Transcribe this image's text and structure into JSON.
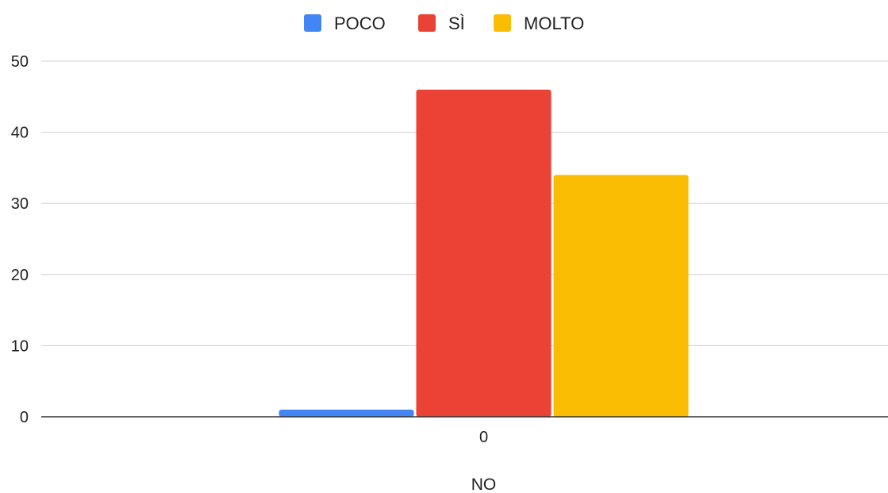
{
  "chart_data": {
    "type": "bar",
    "categories": [
      "0"
    ],
    "series": [
      {
        "name": "POCO",
        "values": [
          1
        ],
        "color": "#4285F4"
      },
      {
        "name": "SÌ",
        "values": [
          46
        ],
        "color": "#EA4335"
      },
      {
        "name": "MOLTO",
        "values": [
          34
        ],
        "color": "#FBBC04"
      }
    ],
    "xlabel": "NO",
    "ylabel": "",
    "ylim": [
      0,
      50
    ],
    "yticks": [
      "0",
      "10",
      "20",
      "30",
      "40",
      "50"
    ],
    "grid": true,
    "legend_position": "top"
  },
  "colors": {
    "grid": "#d0d0d0",
    "axis": "#333333"
  }
}
